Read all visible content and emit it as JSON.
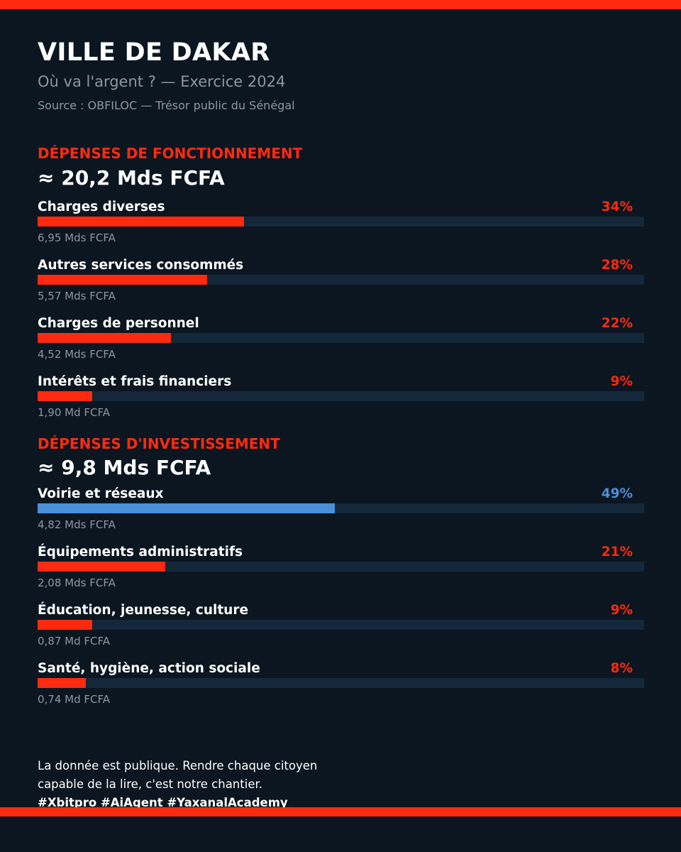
{
  "header": {
    "title": "VILLE DE DAKAR",
    "subtitle": "Où va l'argent ? — Exercice 2024",
    "source": "Source : OBFILOC — Trésor public du Sénégal"
  },
  "colors": {
    "background": "#0b1621",
    "accent": "#ff2a0f",
    "highlight": "#4a90d9",
    "track": "#15273a",
    "muted_text": "#8d97a3"
  },
  "chart_data": [
    {
      "type": "bar",
      "orientation": "horizontal",
      "title": "DÉPENSES DE FONCTIONNEMENT",
      "total": "≈ 20,2 Mds FCFA",
      "xlim": [
        0,
        100
      ],
      "unit": "%",
      "categories": [
        "Charges diverses",
        "Autres services consommés",
        "Charges de personnel",
        "Intérêts et frais financiers"
      ],
      "values": [
        34,
        28,
        22,
        9
      ],
      "value_labels": [
        "34%",
        "28%",
        "22%",
        "9%"
      ],
      "amounts": [
        "6,95 Mds FCFA",
        "5,57 Mds FCFA",
        "4,52 Mds FCFA",
        "1,90 Md FCFA"
      ],
      "colors": [
        "#ff2a0f",
        "#ff2a0f",
        "#ff2a0f",
        "#ff2a0f"
      ]
    },
    {
      "type": "bar",
      "orientation": "horizontal",
      "title": "DÉPENSES D'INVESTISSEMENT",
      "total": "≈ 9,8 Mds FCFA",
      "xlim": [
        0,
        100
      ],
      "unit": "%",
      "categories": [
        "Voirie et réseaux",
        "Équipements administratifs",
        "Éducation, jeunesse, culture",
        "Santé, hygiène, action sociale"
      ],
      "values": [
        49,
        21,
        9,
        8
      ],
      "value_labels": [
        "49%",
        "21%",
        "9%",
        "8%"
      ],
      "amounts": [
        "4,82 Mds FCFA",
        "2,08 Mds FCFA",
        "0,87 Md FCFA",
        "0,74 Md FCFA"
      ],
      "colors": [
        "#4a90d9",
        "#ff2a0f",
        "#ff2a0f",
        "#ff2a0f"
      ]
    }
  ],
  "footer": {
    "line1": "La donnée est publique. Rendre chaque citoyen",
    "line2": "capable de la lire, c'est notre chantier.",
    "hashtags": "#Xbitpro #AiAgent #YaxanalAcademy"
  }
}
